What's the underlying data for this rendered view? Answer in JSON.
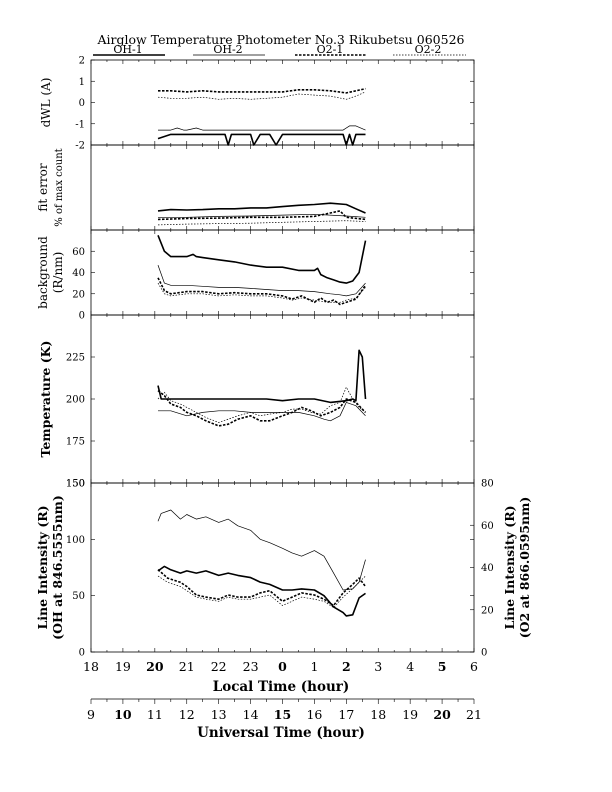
{
  "chart_data": {
    "type": "line",
    "title": "Airglow Temperature Photometer No.3  Rikubetsu  060526",
    "legend": {
      "placement": "top",
      "entries": [
        {
          "name": "OH-1",
          "style": "solid-thick"
        },
        {
          "name": "OH-2",
          "style": "solid-thin"
        },
        {
          "name": "O2-1",
          "style": "dashed-thick"
        },
        {
          "name": "O2-2",
          "style": "dashed-thin"
        }
      ]
    },
    "xaxis_local": {
      "label": "Local Time (hour)",
      "ticks": [
        "18",
        "19",
        "20",
        "21",
        "22",
        "23",
        "0",
        "1",
        "2",
        "3",
        "4",
        "5",
        "6"
      ]
    },
    "xaxis_ut": {
      "label": "Universal Time (hour)",
      "ticks": [
        "9",
        "10",
        "11",
        "12",
        "13",
        "14",
        "15",
        "16",
        "17",
        "18",
        "19",
        "20",
        "21"
      ]
    },
    "panels": [
      {
        "id": "dwl",
        "ylabel": [
          "dWL (A)"
        ],
        "ylim": [
          -2,
          2
        ],
        "yticks": [
          "-2",
          "-1",
          "0",
          "1",
          "2"
        ],
        "series": [
          {
            "name": "OH-1",
            "style": "solid-thick",
            "x": [
              11.1,
              11.5,
              12,
              12.5,
              13,
              13.2,
              13.3,
              13.4,
              13.8,
              14,
              14.1,
              14.3,
              14.6,
              14.8,
              15,
              15.1,
              15.2,
              15.6,
              16,
              16.2,
              16.5,
              16.9,
              17,
              17.1,
              17.2,
              17.3,
              17.6
            ],
            "y": [
              -1.7,
              -1.5,
              -1.5,
              -1.5,
              -1.5,
              -1.5,
              -2.0,
              -1.5,
              -1.5,
              -1.5,
              -2.0,
              -1.5,
              -1.5,
              -2.0,
              -1.5,
              -1.5,
              -1.5,
              -1.5,
              -1.5,
              -1.5,
              -1.5,
              -1.5,
              -2.0,
              -1.5,
              -2.0,
              -1.5,
              -1.5
            ]
          },
          {
            "name": "OH-2",
            "style": "solid-thin",
            "x": [
              11.1,
              11.5,
              11.7,
              11.9,
              12,
              12.3,
              12.5,
              13,
              14,
              15,
              16,
              16.5,
              16.9,
              17.1,
              17.3,
              17.6
            ],
            "y": [
              -1.3,
              -1.3,
              -1.2,
              -1.3,
              -1.3,
              -1.2,
              -1.3,
              -1.3,
              -1.3,
              -1.3,
              -1.3,
              -1.3,
              -1.3,
              -1.1,
              -1.1,
              -1.3
            ]
          },
          {
            "name": "O2-1",
            "style": "dashed-thick",
            "x": [
              11.1,
              11.5,
              12,
              12.5,
              13,
              13.5,
              14,
              14.5,
              15,
              15.5,
              16,
              16.5,
              17,
              17.3,
              17.6
            ],
            "y": [
              0.55,
              0.55,
              0.5,
              0.55,
              0.5,
              0.5,
              0.5,
              0.5,
              0.5,
              0.6,
              0.6,
              0.55,
              0.45,
              0.55,
              0.65
            ]
          },
          {
            "name": "O2-2",
            "style": "dashed-thin",
            "x": [
              11.1,
              11.5,
              12,
              12.5,
              13,
              13.5,
              14,
              14.5,
              15,
              15.5,
              16,
              16.5,
              17,
              17.3,
              17.6
            ],
            "y": [
              0.25,
              0.2,
              0.2,
              0.25,
              0.15,
              0.2,
              0.15,
              0.2,
              0.25,
              0.4,
              0.35,
              0.3,
              0.15,
              0.3,
              0.5
            ]
          }
        ]
      },
      {
        "id": "fit",
        "ylabel": [
          "fit error",
          "% of max count"
        ],
        "ylim": [
          0,
          2
        ],
        "yticks": [],
        "series": [
          {
            "name": "OH-1",
            "style": "solid-thick",
            "x": [
              11.1,
              11.5,
              12,
              12.5,
              13,
              13.5,
              14,
              14.5,
              15,
              15.5,
              16,
              16.5,
              17,
              17.3,
              17.6
            ],
            "y": [
              0.45,
              0.48,
              0.47,
              0.48,
              0.5,
              0.5,
              0.52,
              0.52,
              0.55,
              0.58,
              0.6,
              0.63,
              0.6,
              0.5,
              0.4
            ]
          },
          {
            "name": "OH-2",
            "style": "solid-thin",
            "x": [
              11.1,
              12,
              13,
              14,
              15,
              16,
              17,
              17.6
            ],
            "y": [
              0.3,
              0.3,
              0.32,
              0.33,
              0.35,
              0.37,
              0.33,
              0.3
            ]
          },
          {
            "name": "O2-1",
            "style": "dashed-thick",
            "x": [
              11.1,
              12,
              13,
              14,
              15,
              16,
              16.8,
              17,
              17.6
            ],
            "y": [
              0.25,
              0.27,
              0.28,
              0.3,
              0.3,
              0.32,
              0.45,
              0.3,
              0.25
            ]
          },
          {
            "name": "O2-2",
            "style": "dashed-thin",
            "x": [
              11.1,
              12,
              13,
              14,
              15,
              16,
              17,
              17.6
            ],
            "y": [
              0.12,
              0.14,
              0.15,
              0.16,
              0.18,
              0.2,
              0.22,
              0.2
            ]
          }
        ]
      },
      {
        "id": "bg",
        "ylabel": [
          "background",
          "(R/nm)"
        ],
        "ylim": [
          0,
          80
        ],
        "yticks": [
          "0",
          "20",
          "40",
          "60"
        ],
        "series": [
          {
            "name": "OH-1",
            "style": "solid-thick",
            "x": [
              11.1,
              11.3,
              11.5,
              12,
              12.2,
              12.3,
              12.5,
              13,
              13.5,
              14,
              14.5,
              15,
              15.5,
              16,
              16.1,
              16.2,
              16.4,
              16.6,
              16.8,
              17,
              17.2,
              17.4,
              17.6
            ],
            "y": [
              75,
              60,
              55,
              55,
              57,
              55,
              54,
              52,
              50,
              47,
              45,
              45,
              42,
              42,
              44,
              38,
              35,
              33,
              31,
              30,
              32,
              40,
              70
            ]
          },
          {
            "name": "OH-2",
            "style": "solid-thin",
            "x": [
              11.1,
              11.3,
              11.5,
              12,
              12.5,
              13,
              13.5,
              14,
              14.5,
              15,
              15.5,
              16,
              16.5,
              16.8,
              17,
              17.3,
              17.6
            ],
            "y": [
              47,
              30,
              28,
              28,
              27,
              26,
              26,
              25,
              24,
              23,
              23,
              22,
              20,
              19,
              18,
              20,
              30
            ]
          },
          {
            "name": "O2-1",
            "style": "dashed-thick",
            "x": [
              11.1,
              11.3,
              11.5,
              12,
              12.5,
              13,
              13.5,
              14,
              14.5,
              15,
              15.3,
              15.6,
              15.8,
              16,
              16.2,
              16.4,
              16.6,
              16.8,
              17,
              17.3,
              17.6
            ],
            "y": [
              35,
              23,
              20,
              22,
              22,
              20,
              21,
              20,
              20,
              18,
              15,
              18,
              15,
              12,
              16,
              12,
              14,
              10,
              12,
              15,
              28
            ]
          },
          {
            "name": "O2-2",
            "style": "dashed-thin",
            "x": [
              11.1,
              11.3,
              11.5,
              12,
              12.5,
              13,
              13.5,
              14,
              14.5,
              15,
              15.3,
              15.6,
              16,
              16.4,
              16.8,
              17,
              17.3,
              17.6
            ],
            "y": [
              30,
              20,
              18,
              20,
              20,
              18,
              19,
              18,
              18,
              16,
              14,
              16,
              14,
              12,
              12,
              14,
              16,
              26
            ]
          }
        ]
      },
      {
        "id": "temp",
        "ylabel": [
          "Temperature (K)"
        ],
        "ylim": [
          150,
          250
        ],
        "yticks": [
          "150",
          "175",
          "200",
          "225"
        ],
        "series": [
          {
            "name": "OH-1",
            "style": "solid-thick",
            "x": [
              11.1,
              11.2,
              11.4,
              12,
              12.5,
              13,
              13.5,
              14,
              14.5,
              15,
              15.5,
              16,
              16.5,
              17,
              17.2,
              17.3,
              17.4,
              17.5,
              17.6
            ],
            "y": [
              208,
              200,
              200,
              200,
              200,
              200,
              200,
              200,
              200,
              199,
              200,
              200,
              198,
              199,
              200,
              199,
              229,
              225,
              200
            ]
          },
          {
            "name": "OH-2",
            "style": "solid-thin",
            "x": [
              11.1,
              11.5,
              12,
              12.5,
              13,
              13.5,
              14,
              14.5,
              15,
              15.5,
              16,
              16.3,
              16.5,
              16.8,
              17,
              17.3,
              17.6
            ],
            "y": [
              193,
              193,
              190,
              192,
              193,
              193,
              192,
              192,
              192,
              192,
              190,
              188,
              187,
              190,
              198,
              196,
              190
            ]
          },
          {
            "name": "O2-1",
            "style": "dashed-thick",
            "x": [
              11.1,
              11.3,
              11.5,
              11.8,
              12,
              12.3,
              12.6,
              13,
              13.3,
              13.6,
              14,
              14.3,
              14.6,
              15,
              15.3,
              15.6,
              15.9,
              16.2,
              16.5,
              16.8,
              17,
              17.3,
              17.6
            ],
            "y": [
              205,
              202,
              197,
              195,
              192,
              190,
              187,
              184,
              185,
              188,
              190,
              187,
              187,
              190,
              192,
              195,
              193,
              190,
              192,
              195,
              200,
              198,
              192
            ]
          },
          {
            "name": "O2-2",
            "style": "dashed-thin",
            "x": [
              11.1,
              11.3,
              11.5,
              11.8,
              12,
              12.3,
              12.6,
              13,
              13.3,
              13.6,
              14,
              14.3,
              14.6,
              15,
              15.3,
              15.6,
              15.9,
              16.2,
              16.5,
              16.8,
              17,
              17.2,
              17.4,
              17.6
            ],
            "y": [
              200,
              204,
              199,
              197,
              195,
              192,
              189,
              186,
              188,
              190,
              192,
              190,
              191,
              192,
              194,
              194,
              192,
              191,
              196,
              198,
              207,
              200,
              195,
              192
            ]
          }
        ]
      },
      {
        "id": "int",
        "ylabel": [
          "Line Intensity (R)",
          "(OH at 846.5555nm)"
        ],
        "ylabel_right": [
          "Line Intensity (R)",
          "(O2 at 866.0595nm)"
        ],
        "ylim": [
          0,
          150
        ],
        "yticks": [
          "0",
          "50",
          "100",
          "150"
        ],
        "ylim_right": [
          0,
          80
        ],
        "yticks_right": [
          "0",
          "20",
          "40",
          "60",
          "80"
        ],
        "series": [
          {
            "name": "OH-1",
            "style": "solid-thick",
            "axis": "left",
            "x": [
              11.1,
              11.3,
              11.5,
              11.8,
              12,
              12.3,
              12.6,
              13,
              13.3,
              13.6,
              14,
              14.3,
              14.6,
              15,
              15.3,
              15.6,
              16,
              16.3,
              16.6,
              16.9,
              17,
              17.2,
              17.4,
              17.6
            ],
            "y": [
              72,
              76,
              73,
              70,
              72,
              70,
              72,
              68,
              70,
              68,
              66,
              62,
              60,
              55,
              55,
              56,
              55,
              50,
              40,
              35,
              32,
              33,
              48,
              52
            ]
          },
          {
            "name": "OH-2",
            "style": "solid-thin",
            "axis": "left",
            "x": [
              11.1,
              11.2,
              11.5,
              11.8,
              12,
              12.3,
              12.6,
              13,
              13.3,
              13.6,
              14,
              14.3,
              14.6,
              15,
              15.3,
              15.6,
              16,
              16.3,
              16.6,
              16.9,
              17.2,
              17.4,
              17.6
            ],
            "y": [
              116,
              123,
              126,
              118,
              122,
              118,
              120,
              115,
              118,
              112,
              108,
              100,
              97,
              92,
              88,
              85,
              90,
              85,
              70,
              55,
              56,
              62,
              82
            ]
          },
          {
            "name": "O2-1",
            "style": "dashed-thick",
            "axis": "right",
            "x": [
              11.1,
              11.4,
              11.8,
              12,
              12.3,
              12.6,
              13,
              13.3,
              13.6,
              14,
              14.3,
              14.6,
              15,
              15.3,
              15.6,
              16,
              16.3,
              16.6,
              16.9,
              17.2,
              17.4,
              17.6
            ],
            "y": [
              39,
              35,
              33,
              31,
              27,
              26,
              25,
              27,
              26,
              26,
              28,
              29,
              24,
              26,
              28,
              27,
              25,
              22,
              28,
              32,
              35,
              31
            ]
          },
          {
            "name": "O2-2",
            "style": "dashed-thin",
            "axis": "right",
            "x": [
              11.1,
              11.4,
              11.8,
              12,
              12.3,
              12.6,
              13,
              13.3,
              13.6,
              14,
              14.3,
              14.6,
              15,
              15.3,
              15.6,
              16,
              16.3,
              16.6,
              16.9,
              17.2,
              17.4,
              17.6
            ],
            "y": [
              36,
              33,
              31,
              29,
              26,
              25,
              24,
              26,
              25,
              25,
              26,
              27,
              22,
              24,
              26,
              25,
              24,
              21,
              26,
              30,
              33,
              36
            ]
          }
        ]
      }
    ]
  }
}
